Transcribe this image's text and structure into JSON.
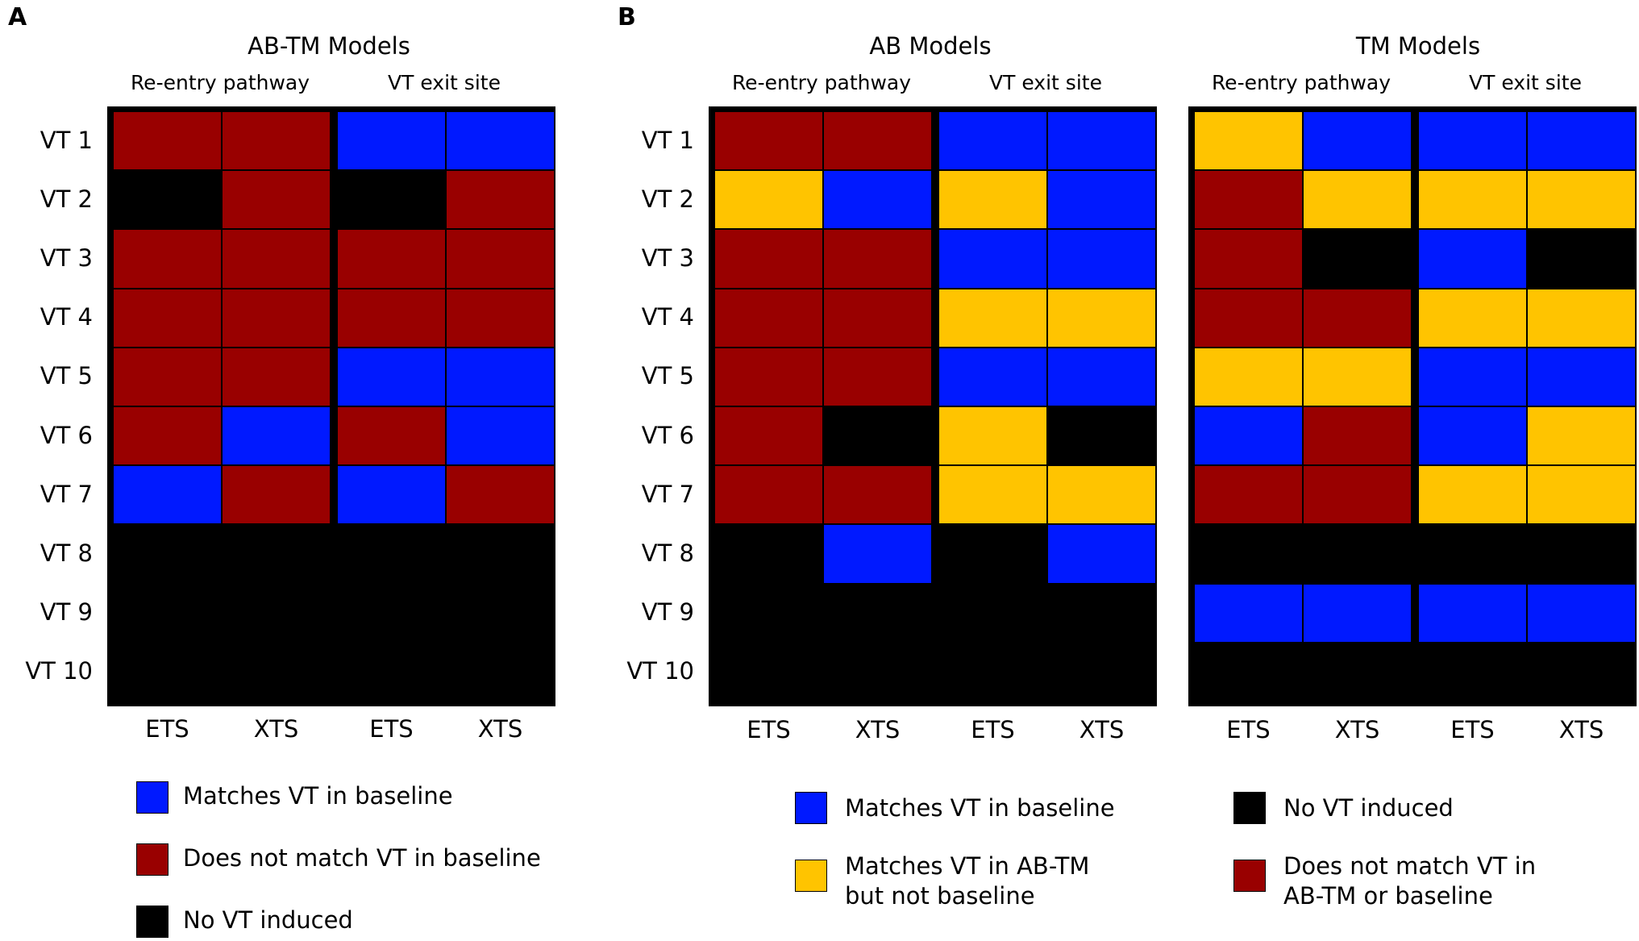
{
  "colors": {
    "match": "#0019ff",
    "nomatch": "#990000",
    "novt": "#000000",
    "abtm": "#ffc400"
  },
  "panel_a": {
    "label": "A",
    "title": "AB-TM Models",
    "subheaders": [
      "Re-entry pathway",
      "VT exit site"
    ],
    "rows": [
      "VT 1",
      "VT 2",
      "VT 3",
      "VT 4",
      "VT 5",
      "VT 6",
      "VT 7",
      "VT 8",
      "VT 9",
      "VT 10"
    ],
    "cols": [
      "ETS",
      "XTS",
      "ETS",
      "XTS"
    ],
    "cells": [
      [
        "R",
        "R",
        "B",
        "B"
      ],
      [
        "K",
        "R",
        "K",
        "R"
      ],
      [
        "R",
        "R",
        "R",
        "R"
      ],
      [
        "R",
        "R",
        "R",
        "R"
      ],
      [
        "R",
        "R",
        "B",
        "B"
      ],
      [
        "R",
        "B",
        "R",
        "B"
      ],
      [
        "B",
        "R",
        "B",
        "R"
      ],
      [
        "K",
        "K",
        "K",
        "K"
      ],
      [
        "K",
        "K",
        "K",
        "K"
      ],
      [
        "K",
        "K",
        "K",
        "K"
      ]
    ],
    "legend": [
      "Matches VT in baseline",
      "Does not match VT in baseline",
      "No VT induced"
    ]
  },
  "panel_b": {
    "label": "B",
    "rows": [
      "VT 1",
      "VT 2",
      "VT 3",
      "VT 4",
      "VT 5",
      "VT 6",
      "VT 7",
      "VT 8",
      "VT 9",
      "VT 10"
    ],
    "ab": {
      "title": "AB Models",
      "subheaders": [
        "Re-entry pathway",
        "VT exit site"
      ],
      "cols": [
        "ETS",
        "XTS",
        "ETS",
        "XTS"
      ],
      "cells": [
        [
          "R",
          "R",
          "B",
          "B"
        ],
        [
          "Y",
          "B",
          "Y",
          "B"
        ],
        [
          "R",
          "R",
          "B",
          "B"
        ],
        [
          "R",
          "R",
          "Y",
          "Y"
        ],
        [
          "R",
          "R",
          "B",
          "B"
        ],
        [
          "R",
          "K",
          "Y",
          "K"
        ],
        [
          "R",
          "R",
          "Y",
          "Y"
        ],
        [
          "K",
          "B",
          "K",
          "B"
        ],
        [
          "K",
          "K",
          "K",
          "K"
        ],
        [
          "K",
          "K",
          "K",
          "K"
        ]
      ]
    },
    "tm": {
      "title": "TM Models",
      "subheaders": [
        "Re-entry pathway",
        "VT exit site"
      ],
      "cols": [
        "ETS",
        "XTS",
        "ETS",
        "XTS"
      ],
      "cells": [
        [
          "Y",
          "B",
          "B",
          "B"
        ],
        [
          "R",
          "Y",
          "Y",
          "Y"
        ],
        [
          "R",
          "K",
          "B",
          "K"
        ],
        [
          "R",
          "R",
          "Y",
          "Y"
        ],
        [
          "Y",
          "Y",
          "B",
          "B"
        ],
        [
          "B",
          "R",
          "B",
          "Y"
        ],
        [
          "R",
          "R",
          "Y",
          "Y"
        ],
        [
          "K",
          "K",
          "K",
          "K"
        ],
        [
          "B",
          "B",
          "B",
          "B"
        ],
        [
          "K",
          "K",
          "K",
          "K"
        ]
      ]
    },
    "legend": {
      "match": "Matches VT in baseline",
      "abtm_line1": "Matches VT in AB-TM",
      "abtm_line2": "but not baseline",
      "novt": "No VT induced",
      "nomatch_line1": "Does not match VT in",
      "nomatch_line2": "AB-TM or baseline"
    }
  }
}
